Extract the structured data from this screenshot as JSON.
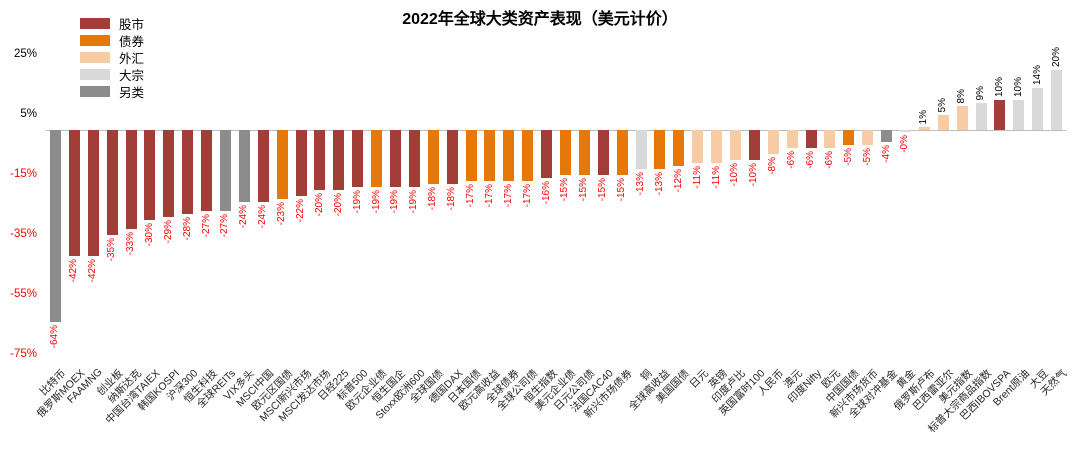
{
  "chart_data": {
    "type": "bar",
    "title": "2022年全球大类资产表现（美元计价）",
    "unit": "%",
    "y_axis": {
      "ticks": [
        "25%",
        "5%",
        "-15%",
        "-35%",
        "-55%",
        "-75%"
      ],
      "tick_values": [
        25,
        5,
        -15,
        -35,
        -55,
        -75
      ],
      "range": [
        30,
        -77
      ],
      "grid": false
    },
    "legend": {
      "position": "top-left",
      "items": [
        {
          "label": "股市",
          "color": "#a13e38"
        },
        {
          "label": "债券",
          "color": "#e6780a"
        },
        {
          "label": "外汇",
          "color": "#f7cba4"
        },
        {
          "label": "大宗",
          "color": "#d9d9d9"
        },
        {
          "label": "另类",
          "color": "#8c8c8c"
        }
      ]
    },
    "label_colors": {
      "negative": "#ff0000",
      "positive": "#000000"
    },
    "bars": [
      {
        "name": "比特币",
        "value": -64,
        "text": "-64%",
        "category": "另类"
      },
      {
        "name": "俄罗斯MOEX",
        "value": -42,
        "text": "-42%",
        "category": "股市"
      },
      {
        "name": "FAAMNG",
        "value": -42,
        "text": "-42%",
        "category": "股市"
      },
      {
        "name": "创业板",
        "value": -35,
        "text": "-35%",
        "category": "股市"
      },
      {
        "name": "纳斯达克",
        "value": -33,
        "text": "-33%",
        "category": "股市"
      },
      {
        "name": "中国台湾TAIEX",
        "value": -30,
        "text": "-30%",
        "category": "股市"
      },
      {
        "name": "韩国KOSPI",
        "value": -29,
        "text": "-29%",
        "category": "股市"
      },
      {
        "name": "沪深300",
        "value": -28,
        "text": "-28%",
        "category": "股市"
      },
      {
        "name": "恒生科技",
        "value": -27,
        "text": "-27%",
        "category": "股市"
      },
      {
        "name": "全球REITs",
        "value": -27,
        "text": "-27%",
        "category": "另类"
      },
      {
        "name": "VIX多头",
        "value": -24,
        "text": "-24%",
        "category": "另类"
      },
      {
        "name": "MSCI中国",
        "value": -24,
        "text": "-24%",
        "category": "股市"
      },
      {
        "name": "欧元区国债",
        "value": -23,
        "text": "-23%",
        "category": "债券"
      },
      {
        "name": "MSCI新兴市场",
        "value": -22,
        "text": "-22%",
        "category": "股市"
      },
      {
        "name": "MSCI发达市场",
        "value": -20,
        "text": "-20%",
        "category": "股市"
      },
      {
        "name": "日经225",
        "value": -20,
        "text": "-20%",
        "category": "股市"
      },
      {
        "name": "标普500",
        "value": -19,
        "text": "-19%",
        "category": "股市"
      },
      {
        "name": "欧元企业债",
        "value": -19,
        "text": "-19%",
        "category": "债券"
      },
      {
        "name": "恒生国企",
        "value": -19,
        "text": "-19%",
        "category": "股市"
      },
      {
        "name": "Stoxx欧洲600",
        "value": -19,
        "text": "-19%",
        "category": "股市"
      },
      {
        "name": "全球国债",
        "value": -18,
        "text": "-18%",
        "category": "债券"
      },
      {
        "name": "德国DAX",
        "value": -18,
        "text": "-18%",
        "category": "股市"
      },
      {
        "name": "日本国债",
        "value": -17,
        "text": "-17%",
        "category": "债券"
      },
      {
        "name": "欧元高收益",
        "value": -17,
        "text": "-17%",
        "category": "债券"
      },
      {
        "name": "全球债券",
        "value": -17,
        "text": "-17%",
        "category": "债券"
      },
      {
        "name": "全球公司债",
        "value": -17,
        "text": "-17%",
        "category": "债券"
      },
      {
        "name": "恒生指数",
        "value": -16,
        "text": "-16%",
        "category": "股市"
      },
      {
        "name": "美元企业债",
        "value": -15,
        "text": "-15%",
        "category": "债券"
      },
      {
        "name": "日元公司债",
        "value": -15,
        "text": "-15%",
        "category": "债券"
      },
      {
        "name": "法国CAC40",
        "value": -15,
        "text": "-15%",
        "category": "股市"
      },
      {
        "name": "新兴市场债券",
        "value": -15,
        "text": "-15%",
        "category": "债券"
      },
      {
        "name": "铜",
        "value": -13,
        "text": "-13%",
        "category": "大宗"
      },
      {
        "name": "全球高收益",
        "value": -13,
        "text": "-13%",
        "category": "债券"
      },
      {
        "name": "美国国债",
        "value": -12,
        "text": "-12%",
        "category": "债券"
      },
      {
        "name": "日元",
        "value": -11,
        "text": "-11%",
        "category": "外汇"
      },
      {
        "name": "英镑",
        "value": -11,
        "text": "-11%",
        "category": "外汇"
      },
      {
        "name": "印度卢比",
        "value": -10,
        "text": "-10%",
        "category": "外汇"
      },
      {
        "name": "英国富时100",
        "value": -10,
        "text": "-10%",
        "category": "股市"
      },
      {
        "name": "人民币",
        "value": -8,
        "text": "-8%",
        "category": "外汇"
      },
      {
        "name": "澳元",
        "value": -6,
        "text": "-6%",
        "category": "外汇"
      },
      {
        "name": "印度Nifty",
        "value": -6,
        "text": "-6%",
        "category": "股市"
      },
      {
        "name": "欧元",
        "value": -6,
        "text": "-6%",
        "category": "外汇"
      },
      {
        "name": "中国国债",
        "value": -5,
        "text": "-5%",
        "category": "债券"
      },
      {
        "name": "新兴市场货币",
        "value": -5,
        "text": "-5%",
        "category": "外汇"
      },
      {
        "name": "全球对冲基金",
        "value": -4,
        "text": "-4%",
        "category": "另类"
      },
      {
        "name": "黄金",
        "value": -0.3,
        "text": "-0%",
        "category": "大宗"
      },
      {
        "name": "俄罗斯卢布",
        "value": 1,
        "text": "1%",
        "category": "外汇"
      },
      {
        "name": "巴西雷亚尔",
        "value": 5,
        "text": "5%",
        "category": "外汇"
      },
      {
        "name": "美元指数",
        "value": 8,
        "text": "8%",
        "category": "外汇"
      },
      {
        "name": "标普大宗商品指数",
        "value": 9,
        "text": "9%",
        "category": "大宗"
      },
      {
        "name": "巴西IBOVSPA",
        "value": 10,
        "text": "10%",
        "category": "股市"
      },
      {
        "name": "Brent原油",
        "value": 10,
        "text": "10%",
        "category": "大宗"
      },
      {
        "name": "大豆",
        "value": 14,
        "text": "14%",
        "category": "大宗"
      },
      {
        "name": "天然气",
        "value": 20,
        "text": "20%",
        "category": "大宗"
      }
    ]
  }
}
